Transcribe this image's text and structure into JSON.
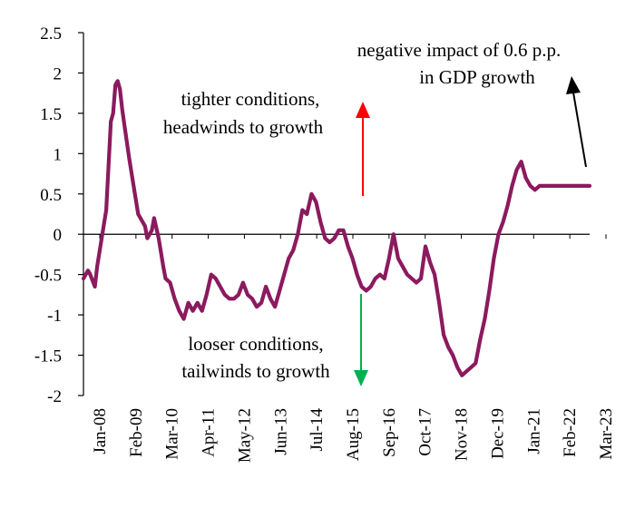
{
  "chart_data": {
    "type": "line",
    "title": "",
    "xlabel": "",
    "ylabel": "",
    "ylim": [
      -2,
      2.5
    ],
    "yticks": [
      "2.5",
      "2",
      "1.5",
      "1",
      "0.5",
      "0",
      "-0.5",
      "-1",
      "-1.5",
      "-2"
    ],
    "xticks": [
      "Jan-08",
      "Feb-09",
      "Mar-10",
      "Apr-11",
      "May-12",
      "Jun-13",
      "Jul-14",
      "Aug-15",
      "Sep-16",
      "Oct-17",
      "Nov-18",
      "Dec-19",
      "Jan-21",
      "Feb-22",
      "Mar-23"
    ],
    "grid": false,
    "legend": "none",
    "series": [
      {
        "color": "#8b1a5e",
        "x": [
          0,
          2,
          3,
          5,
          6,
          8,
          10,
          12,
          13,
          14,
          15,
          16,
          17,
          18,
          20,
          22,
          24,
          26,
          27,
          28,
          30,
          31,
          33,
          35,
          36,
          38,
          40,
          42,
          44,
          46,
          48,
          50,
          52,
          54,
          56,
          58,
          60,
          62,
          64,
          66,
          68,
          70,
          72,
          74,
          76,
          78,
          80,
          82,
          84,
          86,
          88,
          90,
          92,
          94,
          96,
          98,
          100,
          102,
          104,
          106,
          108,
          110,
          112,
          114,
          116,
          118,
          120,
          122,
          124,
          126,
          128,
          130,
          132,
          134,
          136,
          138,
          140,
          142,
          144,
          146,
          148,
          150,
          152,
          154,
          156,
          158,
          160,
          162,
          164,
          166,
          168,
          170,
          172,
          174,
          176,
          178,
          180,
          182,
          184,
          186,
          188,
          190,
          192,
          194,
          196,
          198,
          200,
          202,
          204,
          206,
          208,
          210,
          212,
          214,
          216,
          218,
          220,
          222
        ],
        "y": [
          -0.55,
          -0.45,
          -0.5,
          -0.65,
          -0.4,
          -0.05,
          0.3,
          1.4,
          1.5,
          1.85,
          1.9,
          1.8,
          1.55,
          1.35,
          0.95,
          0.6,
          0.25,
          0.15,
          0.1,
          -0.05,
          0.05,
          0.2,
          -0.05,
          -0.4,
          -0.55,
          -0.6,
          -0.8,
          -0.95,
          -1.05,
          -0.85,
          -0.95,
          -0.85,
          -0.95,
          -0.75,
          -0.5,
          -0.55,
          -0.65,
          -0.75,
          -0.8,
          -0.8,
          -0.75,
          -0.6,
          -0.75,
          -0.8,
          -0.9,
          -0.85,
          -0.65,
          -0.8,
          -0.9,
          -0.7,
          -0.5,
          -0.3,
          -0.2,
          0.0,
          0.3,
          0.25,
          0.5,
          0.4,
          0.15,
          -0.05,
          -0.1,
          -0.05,
          0.05,
          0.05,
          -0.15,
          -0.3,
          -0.5,
          -0.65,
          -0.7,
          -0.65,
          -0.55,
          -0.5,
          -0.55,
          -0.3,
          0.0,
          -0.3,
          -0.4,
          -0.5,
          -0.55,
          -0.6,
          -0.55,
          -0.15,
          -0.35,
          -0.5,
          -0.85,
          -1.25,
          -1.4,
          -1.5,
          -1.65,
          -1.75,
          -1.7,
          -1.65,
          -1.6,
          -1.3,
          -1.05,
          -0.7,
          -0.3,
          0.0,
          0.15,
          0.35,
          0.6,
          0.8,
          0.9,
          0.7,
          0.6,
          0.55,
          0.6,
          0.6,
          0.6,
          0.6,
          0.6,
          0.6,
          0.6,
          0.6,
          0.6,
          0.6,
          0.6,
          0.6
        ],
        "x_max": 222
      }
    ],
    "annotations": {
      "upper": [
        "tighter conditions,",
        "headwinds to growth"
      ],
      "lower": [
        "looser conditions,",
        "tailwinds to growth"
      ],
      "impact": [
        "negative  impact of 0.6 p.p.",
        "in GDP growth"
      ]
    },
    "arrow_colors": {
      "up": "#ff0000",
      "down": "#00b050",
      "impact": "#000000"
    }
  }
}
